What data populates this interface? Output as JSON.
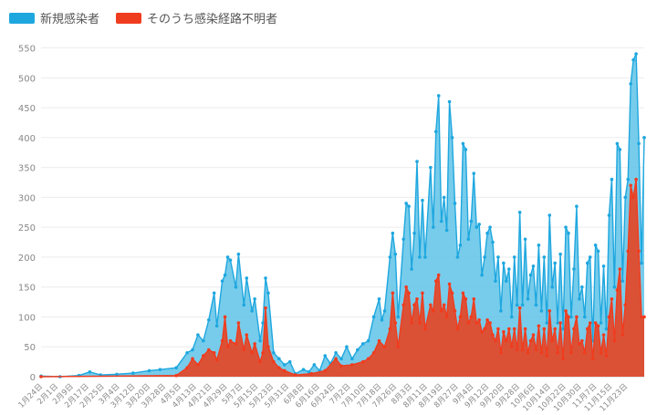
{
  "chart_data": {
    "type": "area",
    "title": "",
    "xlabel": "",
    "ylabel": "",
    "ylim": [
      0,
      560
    ],
    "yticks": [
      0,
      50,
      100,
      150,
      200,
      250,
      300,
      350,
      400,
      450,
      500,
      550
    ],
    "grid": true,
    "legend_position": "top-left",
    "colors": {
      "total": "#1ea7df",
      "total_fill": "#5fc3e8",
      "unknown": "#f03c1e",
      "unknown_fill": "#e04a2c"
    },
    "x_tick_labels": [
      "1月24日",
      "2月1日",
      "2月9日",
      "2月17日",
      "2月25日",
      "3月4日",
      "3月12日",
      "3月20日",
      "3月28日",
      "4月5日",
      "4月13日",
      "4月21日",
      "4月29日",
      "5月7日",
      "5月15日",
      "5月23日",
      "5月31日",
      "6月8日",
      "6月16日",
      "6月24日",
      "7月2日",
      "7月10日",
      "7月18日",
      "7月26日",
      "8月3日",
      "8月11日",
      "8月19日",
      "8月27日",
      "9月4日",
      "9月12日",
      "9月20日",
      "9月28日",
      "10月6日",
      "10月14日",
      "10月22日",
      "10月30日",
      "11月7日",
      "11月15日",
      "11月23日"
    ],
    "series": [
      {
        "name": "新規感染者",
        "key": "total",
        "values": [
          [
            0,
            1
          ],
          [
            14,
            0
          ],
          [
            28,
            2
          ],
          [
            36,
            8
          ],
          [
            44,
            3
          ],
          [
            56,
            4
          ],
          [
            68,
            6
          ],
          [
            80,
            10
          ],
          [
            88,
            12
          ],
          [
            100,
            15
          ],
          [
            108,
            40
          ],
          [
            112,
            45
          ],
          [
            116,
            70
          ],
          [
            120,
            60
          ],
          [
            124,
            95
          ],
          [
            128,
            140
          ],
          [
            130,
            85
          ],
          [
            134,
            160
          ],
          [
            136,
            170
          ],
          [
            138,
            200
          ],
          [
            140,
            195
          ],
          [
            144,
            150
          ],
          [
            146,
            205
          ],
          [
            150,
            120
          ],
          [
            152,
            165
          ],
          [
            156,
            110
          ],
          [
            158,
            130
          ],
          [
            162,
            60
          ],
          [
            164,
            90
          ],
          [
            166,
            165
          ],
          [
            168,
            140
          ],
          [
            172,
            40
          ],
          [
            176,
            30
          ],
          [
            180,
            20
          ],
          [
            184,
            25
          ],
          [
            188,
            5
          ],
          [
            194,
            12
          ],
          [
            198,
            8
          ],
          [
            202,
            20
          ],
          [
            206,
            10
          ],
          [
            210,
            35
          ],
          [
            214,
            22
          ],
          [
            218,
            40
          ],
          [
            222,
            30
          ],
          [
            226,
            50
          ],
          [
            230,
            30
          ],
          [
            234,
            45
          ],
          [
            238,
            55
          ],
          [
            242,
            60
          ],
          [
            246,
            100
          ],
          [
            250,
            130
          ],
          [
            252,
            95
          ],
          [
            254,
            110
          ],
          [
            258,
            200
          ],
          [
            260,
            240
          ],
          [
            262,
            205
          ],
          [
            264,
            100
          ],
          [
            268,
            230
          ],
          [
            270,
            290
          ],
          [
            272,
            285
          ],
          [
            274,
            180
          ],
          [
            276,
            240
          ],
          [
            278,
            360
          ],
          [
            280,
            200
          ],
          [
            282,
            295
          ],
          [
            284,
            200
          ],
          [
            288,
            350
          ],
          [
            290,
            250
          ],
          [
            292,
            410
          ],
          [
            294,
            470
          ],
          [
            296,
            260
          ],
          [
            298,
            300
          ],
          [
            300,
            245
          ],
          [
            302,
            460
          ],
          [
            304,
            400
          ],
          [
            306,
            290
          ],
          [
            308,
            200
          ],
          [
            310,
            220
          ],
          [
            312,
            390
          ],
          [
            314,
            380
          ],
          [
            316,
            230
          ],
          [
            318,
            260
          ],
          [
            320,
            340
          ],
          [
            322,
            250
          ],
          [
            324,
            255
          ],
          [
            326,
            170
          ],
          [
            328,
            200
          ],
          [
            330,
            240
          ],
          [
            332,
            250
          ],
          [
            334,
            225
          ],
          [
            336,
            160
          ],
          [
            338,
            200
          ],
          [
            340,
            110
          ],
          [
            342,
            190
          ],
          [
            344,
            160
          ],
          [
            346,
            180
          ],
          [
            348,
            100
          ],
          [
            350,
            200
          ],
          [
            352,
            120
          ],
          [
            354,
            275
          ],
          [
            356,
            120
          ],
          [
            358,
            230
          ],
          [
            360,
            130
          ],
          [
            362,
            170
          ],
          [
            364,
            185
          ],
          [
            366,
            120
          ],
          [
            368,
            220
          ],
          [
            370,
            110
          ],
          [
            372,
            200
          ],
          [
            374,
            90
          ],
          [
            376,
            270
          ],
          [
            378,
            150
          ],
          [
            380,
            190
          ],
          [
            382,
            90
          ],
          [
            384,
            205
          ],
          [
            386,
            80
          ],
          [
            388,
            250
          ],
          [
            390,
            240
          ],
          [
            392,
            100
          ],
          [
            394,
            180
          ],
          [
            396,
            285
          ],
          [
            398,
            130
          ],
          [
            400,
            150
          ],
          [
            402,
            100
          ],
          [
            404,
            190
          ],
          [
            406,
            200
          ],
          [
            408,
            60
          ],
          [
            410,
            220
          ],
          [
            412,
            210
          ],
          [
            414,
            90
          ],
          [
            416,
            185
          ],
          [
            418,
            80
          ],
          [
            420,
            270
          ],
          [
            422,
            330
          ],
          [
            424,
            150
          ],
          [
            426,
            390
          ],
          [
            428,
            380
          ],
          [
            430,
            160
          ],
          [
            432,
            300
          ],
          [
            434,
            330
          ],
          [
            436,
            490
          ],
          [
            438,
            530
          ],
          [
            440,
            540
          ],
          [
            442,
            390
          ],
          [
            444,
            190
          ],
          [
            446,
            400
          ]
        ]
      },
      {
        "name": "そのうち感染経路不明者",
        "key": "unknown",
        "values": [
          [
            0,
            0
          ],
          [
            100,
            2
          ],
          [
            108,
            15
          ],
          [
            112,
            30
          ],
          [
            116,
            20
          ],
          [
            120,
            35
          ],
          [
            124,
            45
          ],
          [
            128,
            40
          ],
          [
            130,
            28
          ],
          [
            134,
            60
          ],
          [
            136,
            100
          ],
          [
            138,
            50
          ],
          [
            140,
            60
          ],
          [
            144,
            55
          ],
          [
            146,
            90
          ],
          [
            150,
            45
          ],
          [
            152,
            70
          ],
          [
            156,
            40
          ],
          [
            158,
            55
          ],
          [
            162,
            25
          ],
          [
            164,
            40
          ],
          [
            166,
            115
          ],
          [
            168,
            50
          ],
          [
            172,
            25
          ],
          [
            176,
            15
          ],
          [
            180,
            10
          ],
          [
            188,
            3
          ],
          [
            200,
            5
          ],
          [
            210,
            10
          ],
          [
            218,
            30
          ],
          [
            222,
            18
          ],
          [
            230,
            20
          ],
          [
            238,
            25
          ],
          [
            242,
            30
          ],
          [
            246,
            40
          ],
          [
            250,
            60
          ],
          [
            254,
            50
          ],
          [
            258,
            80
          ],
          [
            260,
            140
          ],
          [
            262,
            90
          ],
          [
            264,
            50
          ],
          [
            268,
            120
          ],
          [
            270,
            150
          ],
          [
            272,
            140
          ],
          [
            274,
            90
          ],
          [
            276,
            120
          ],
          [
            278,
            130
          ],
          [
            280,
            90
          ],
          [
            282,
            140
          ],
          [
            284,
            80
          ],
          [
            288,
            120
          ],
          [
            290,
            110
          ],
          [
            292,
            160
          ],
          [
            294,
            170
          ],
          [
            296,
            110
          ],
          [
            298,
            120
          ],
          [
            300,
            100
          ],
          [
            302,
            155
          ],
          [
            304,
            140
          ],
          [
            306,
            110
          ],
          [
            308,
            80
          ],
          [
            310,
            100
          ],
          [
            312,
            140
          ],
          [
            314,
            130
          ],
          [
            316,
            90
          ],
          [
            318,
            100
          ],
          [
            320,
            130
          ],
          [
            322,
            90
          ],
          [
            324,
            95
          ],
          [
            326,
            75
          ],
          [
            328,
            80
          ],
          [
            330,
            95
          ],
          [
            332,
            90
          ],
          [
            334,
            70
          ],
          [
            336,
            60
          ],
          [
            338,
            80
          ],
          [
            340,
            40
          ],
          [
            342,
            75
          ],
          [
            344,
            60
          ],
          [
            346,
            80
          ],
          [
            348,
            50
          ],
          [
            350,
            80
          ],
          [
            352,
            45
          ],
          [
            354,
            115
          ],
          [
            356,
            45
          ],
          [
            358,
            80
          ],
          [
            360,
            40
          ],
          [
            362,
            60
          ],
          [
            364,
            70
          ],
          [
            366,
            45
          ],
          [
            368,
            85
          ],
          [
            370,
            40
          ],
          [
            372,
            80
          ],
          [
            374,
            35
          ],
          [
            376,
            110
          ],
          [
            378,
            60
          ],
          [
            380,
            80
          ],
          [
            382,
            40
          ],
          [
            384,
            90
          ],
          [
            386,
            30
          ],
          [
            388,
            110
          ],
          [
            390,
            100
          ],
          [
            392,
            40
          ],
          [
            394,
            80
          ],
          [
            396,
            100
          ],
          [
            398,
            55
          ],
          [
            400,
            60
          ],
          [
            402,
            40
          ],
          [
            404,
            80
          ],
          [
            406,
            90
          ],
          [
            408,
            30
          ],
          [
            410,
            90
          ],
          [
            412,
            85
          ],
          [
            414,
            40
          ],
          [
            416,
            70
          ],
          [
            418,
            35
          ],
          [
            420,
            100
          ],
          [
            422,
            130
          ],
          [
            424,
            60
          ],
          [
            426,
            145
          ],
          [
            428,
            180
          ],
          [
            430,
            70
          ],
          [
            432,
            120
          ],
          [
            434,
            210
          ],
          [
            436,
            320
          ],
          [
            438,
            300
          ],
          [
            440,
            330
          ],
          [
            442,
            210
          ],
          [
            444,
            100
          ],
          [
            446,
            100
          ]
        ]
      }
    ]
  }
}
